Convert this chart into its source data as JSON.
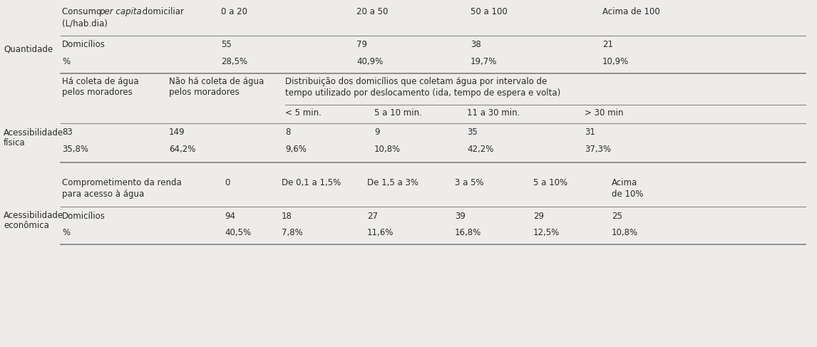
{
  "bg_color": "#edecea",
  "text_color": "#2b2b2b",
  "fig_width": 11.46,
  "fig_height": 4.87,
  "section_labels": {
    "quantidade": "Quantidade",
    "acessibilidade_fisica": "Acessibilidade\nfísica",
    "acessibilidade_economica": "Acessibilidade\neconômica"
  },
  "quantidade": {
    "columns": [
      "0 a 20",
      "20 a 50",
      "50 a 100",
      "Acima de 100"
    ],
    "rows": [
      [
        "Domicílios",
        "55",
        "79",
        "38",
        "21"
      ],
      [
        "%",
        "28,5%",
        "40,9%",
        "19,7%",
        "10,9%"
      ]
    ]
  },
  "acessibilidade_fisica": {
    "col1_header": "Há coleta de água\npelos moradores",
    "col2_header": "Não há coleta de água\npelos moradores",
    "span_header": "Distribuição dos domicílios que coletam água por intervalo de\ntempo utilizado por deslocamento (ida, tempo de espera e volta)",
    "sub_columns": [
      "< 5 min.",
      "5 a 10 min.",
      "11 a 30 min.",
      "> 30 min"
    ],
    "rows": [
      [
        "83",
        "149",
        "8",
        "9",
        "35",
        "31"
      ],
      [
        "35,8%",
        "64,2%",
        "9,6%",
        "10,8%",
        "42,2%",
        "37,3%"
      ]
    ]
  },
  "acessibilidade_economica": {
    "header_label": "Comprometimento da renda\npara acesso à água",
    "columns": [
      "0",
      "De 0,1 a 1,5%",
      "De 1,5 a 3%",
      "3 a 5%",
      "5 a 10%",
      "Acima\nde 10%"
    ],
    "rows": [
      [
        "Domicílios",
        "94",
        "18",
        "27",
        "39",
        "29",
        "25"
      ],
      [
        "%",
        "40,5%",
        "7,8%",
        "11,6%",
        "16,8%",
        "12,5%",
        "10,8%"
      ]
    ]
  }
}
